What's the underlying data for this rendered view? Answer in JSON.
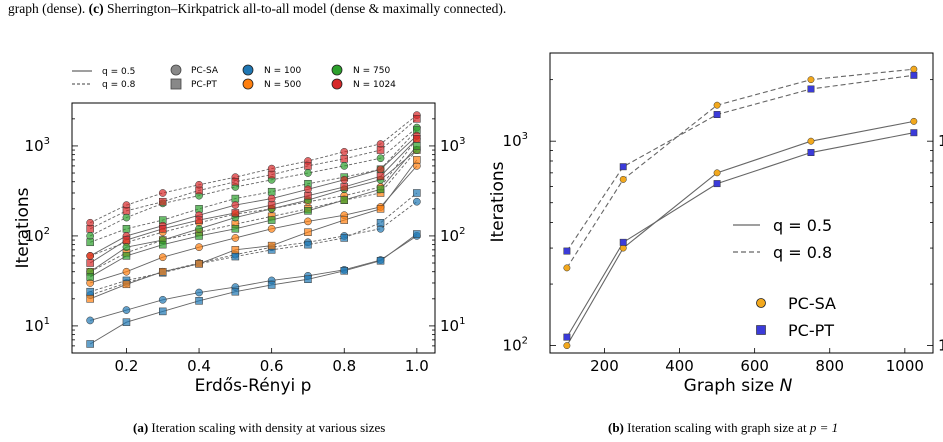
{
  "caption_top": {
    "line1_tail": "graph (dense).",
    "c_label": "(c)",
    "c_text": "Sherrington–Kirkpatrick all-to-all model (dense & maximally connected)."
  },
  "subcaption_a": {
    "label": "(a)",
    "text": "Iteration scaling with density at various sizes"
  },
  "subcaption_b": {
    "label": "(b)",
    "text": "Iteration scaling with graph size at",
    "math": "p = 1"
  },
  "legend_a": {
    "line_solid": "q = 0.5",
    "line_dashed": "q = 0.8",
    "marker_circle": "PC-SA",
    "marker_square": "PC-PT",
    "sizes": [
      "N = 100",
      "N = 500",
      "N = 750",
      "N = 1024"
    ]
  },
  "colors": {
    "n100": "#1f77b4",
    "n500": "#ff7f0e",
    "n750": "#2ca02c",
    "n1024": "#d62728",
    "line": "#666666",
    "sa": "#f2a81d",
    "pt": "#3b3bd9"
  },
  "chart_data": [
    {
      "type": "line",
      "ylabel": "Iterations",
      "xlabel": "Erdős-Rényi p",
      "yscale": "log",
      "xlim": [
        0.05,
        1.05
      ],
      "ylim": [
        5,
        3000
      ],
      "xticks": [
        "0.2",
        "0.4",
        "0.6",
        "0.8",
        "1.0"
      ],
      "yticks": [
        "10",
        "10",
        "10"
      ],
      "yticks_exp": [
        "1",
        "2",
        "3"
      ],
      "x": [
        0.1,
        0.2,
        0.3,
        0.4,
        0.5,
        0.6,
        0.7,
        0.8,
        0.9,
        1.0
      ],
      "series": [
        {
          "size": "N = 100",
          "q": "0.5",
          "solver": "PC-SA",
          "values": [
            11.5,
            15,
            19.5,
            23.5,
            27,
            32,
            36,
            42,
            54,
            100
          ]
        },
        {
          "size": "N = 100",
          "q": "0.5",
          "solver": "PC-PT",
          "values": [
            6.3,
            11,
            14.5,
            19,
            24,
            28.5,
            33,
            41,
            53,
            105
          ]
        },
        {
          "size": "N = 100",
          "q": "0.8",
          "solver": "PC-SA",
          "values": [
            22,
            30,
            40,
            50,
            62,
            75,
            85,
            100,
            120,
            240
          ]
        },
        {
          "size": "N = 100",
          "q": "0.8",
          "solver": "PC-PT",
          "values": [
            24,
            32,
            39,
            49,
            59,
            70,
            80,
            95,
            140,
            300
          ]
        },
        {
          "size": "N = 500",
          "q": "0.5",
          "solver": "PC-SA",
          "values": [
            30,
            40,
            58,
            75,
            95,
            120,
            145,
            170,
            210,
            600
          ]
        },
        {
          "size": "N = 500",
          "q": "0.5",
          "solver": "PC-PT",
          "values": [
            20,
            29,
            40,
            49,
            70,
            78,
            110,
            150,
            200,
            700
          ]
        },
        {
          "size": "N = 500",
          "q": "0.8",
          "solver": "PC-SA",
          "values": [
            60,
            85,
            110,
            140,
            175,
            200,
            240,
            280,
            350,
            1200
          ]
        },
        {
          "size": "N = 500",
          "q": "0.8",
          "solver": "PC-PT",
          "values": [
            40,
            65,
            90,
            110,
            135,
            165,
            200,
            250,
            300,
            900
          ]
        },
        {
          "size": "N = 750",
          "q": "0.5",
          "solver": "PC-SA",
          "values": [
            40,
            75,
            90,
            120,
            160,
            200,
            250,
            330,
            420,
            900
          ]
        },
        {
          "size": "N = 750",
          "q": "0.5",
          "solver": "PC-PT",
          "values": [
            35,
            60,
            80,
            100,
            120,
            150,
            190,
            250,
            330,
            1000
          ]
        },
        {
          "size": "N = 750",
          "q": "0.8",
          "solver": "PC-SA",
          "values": [
            100,
            160,
            230,
            280,
            350,
            420,
            500,
            600,
            730,
            1600
          ]
        },
        {
          "size": "N = 750",
          "q": "0.8",
          "solver": "PC-PT",
          "values": [
            85,
            120,
            150,
            200,
            260,
            310,
            380,
            450,
            550,
            1500
          ]
        },
        {
          "size": "N = 1024",
          "q": "0.5",
          "solver": "PC-SA",
          "values": [
            60,
            100,
            130,
            170,
            220,
            260,
            330,
            420,
            550,
            1300
          ]
        },
        {
          "size": "N = 1024",
          "q": "0.5",
          "solver": "PC-PT",
          "values": [
            50,
            90,
            120,
            150,
            180,
            220,
            280,
            350,
            460,
            1200
          ]
        },
        {
          "size": "N = 1024",
          "q": "0.8",
          "solver": "PC-SA",
          "values": [
            140,
            220,
            300,
            370,
            450,
            560,
            680,
            860,
            1050,
            2200
          ]
        },
        {
          "size": "N = 1024",
          "q": "0.8",
          "solver": "PC-PT",
          "values": [
            120,
            190,
            240,
            320,
            400,
            480,
            600,
            720,
            900,
            2000
          ]
        }
      ]
    },
    {
      "type": "line",
      "ylabel": "Iterations",
      "xlabel": "Graph size",
      "xlabel_var": "N",
      "yscale": "log",
      "xlim": [
        55,
        1075
      ],
      "ylim": [
        92,
        2700
      ],
      "xticks": [
        "200",
        "400",
        "600",
        "800",
        "1000"
      ],
      "yticks": [
        "10",
        "10"
      ],
      "yticks_exp": [
        "2",
        "3"
      ],
      "x": [
        100,
        250,
        500,
        750,
        1024
      ],
      "series": [
        {
          "name": "PC-SA",
          "q": "0.5",
          "values": [
            100,
            300,
            700,
            1000,
            1250
          ]
        },
        {
          "name": "PC-PT",
          "q": "0.5",
          "values": [
            110,
            320,
            620,
            880,
            1100
          ]
        },
        {
          "name": "PC-SA",
          "q": "0.8",
          "values": [
            240,
            650,
            1500,
            2000,
            2250
          ]
        },
        {
          "name": "PC-PT",
          "q": "0.8",
          "values": [
            290,
            750,
            1350,
            1800,
            2100
          ]
        }
      ],
      "legend_lines": [
        "q = 0.5",
        "q = 0.8"
      ],
      "legend_markers": [
        "PC-SA",
        "PC-PT"
      ]
    }
  ]
}
